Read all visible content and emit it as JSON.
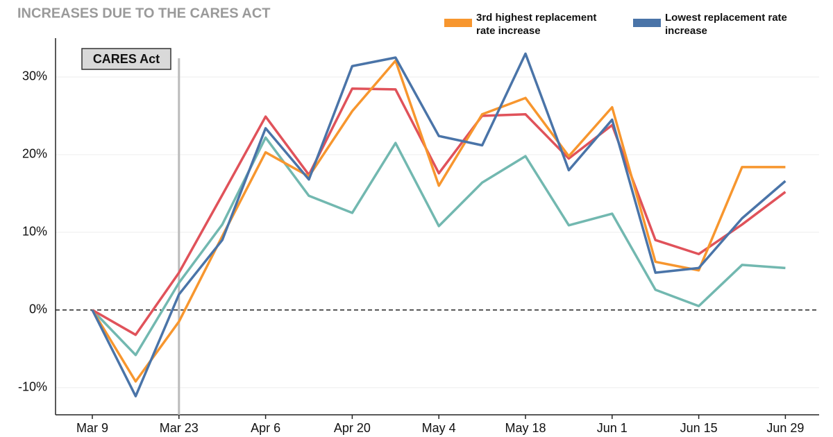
{
  "chart_data": {
    "type": "line",
    "title": "INCREASES DUE TO THE CARES ACT",
    "annotation": "CARES Act",
    "categories": [
      "Mar 9",
      null,
      "Mar 23",
      null,
      "Apr 6",
      null,
      "Apr 20",
      null,
      "May 4",
      null,
      "May 18",
      null,
      "Jun 1",
      null,
      "Jun 15",
      null,
      "Jun 29"
    ],
    "series": [
      {
        "color": "#72b8b0",
        "values": [
          0,
          -5.8,
          3.5,
          11,
          22.2,
          14.7,
          12.5,
          21.5,
          10.8,
          16.4,
          19.8,
          10.9,
          12.4,
          2.6,
          0.5,
          5.8,
          5.4
        ]
      },
      {
        "color": "#e0525a",
        "values": [
          0,
          -3.2,
          4.8,
          14.8,
          24.9,
          17.4,
          28.5,
          28.4,
          17.6,
          25,
          25.2,
          19.5,
          23.8,
          9,
          7.2,
          11,
          15.2
        ]
      },
      {
        "name": "3rd highest replacement rate increase",
        "color": "#f7962e",
        "values": [
          0,
          -9.2,
          -1.5,
          9.5,
          20.3,
          17.2,
          25.6,
          32.1,
          16,
          25.2,
          27.3,
          19.8,
          26.1,
          6.2,
          5.1,
          18.4,
          18.4
        ]
      },
      {
        "name": "Lowest replacement rate increase",
        "color": "#4a74a8",
        "values": [
          0,
          -11.1,
          2,
          9,
          23.4,
          16.8,
          31.4,
          32.5,
          22.4,
          21.2,
          33,
          18,
          24.5,
          4.8,
          5.4,
          11.8,
          16.6
        ]
      }
    ],
    "ylim": [
      -13.5,
      35
    ],
    "yticks": [
      {
        "value": -10,
        "label": "-10%"
      },
      {
        "value": 0,
        "label": "0%"
      },
      {
        "value": 10,
        "label": "10%"
      },
      {
        "value": 20,
        "label": "20%"
      },
      {
        "value": 30,
        "label": "30%"
      }
    ],
    "grid": true
  }
}
